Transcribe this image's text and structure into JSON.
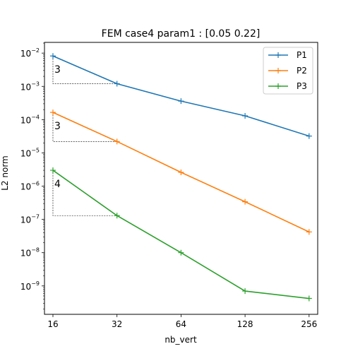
{
  "chart_data": {
    "type": "line",
    "title": "FEM case4 param1 : [0.05 0.22]",
    "xlabel": "nb_vert",
    "ylabel": "L2 norm",
    "xscale": "log2",
    "yscale": "log10",
    "x": [
      16,
      32,
      64,
      128,
      256
    ],
    "xticks": [
      "16",
      "32",
      "64",
      "128",
      "256"
    ],
    "yticks": [
      {
        "mantissa": "10",
        "exp": "−2"
      },
      {
        "mantissa": "10",
        "exp": "−3"
      },
      {
        "mantissa": "10",
        "exp": "−4"
      },
      {
        "mantissa": "10",
        "exp": "−5"
      },
      {
        "mantissa": "10",
        "exp": "−6"
      },
      {
        "mantissa": "10",
        "exp": "−7"
      },
      {
        "mantissa": "10",
        "exp": "−8"
      },
      {
        "mantissa": "10",
        "exp": "−9"
      }
    ],
    "xlim": [
      14.6,
      281
    ],
    "ylim": [
      1.4e-10,
      0.021
    ],
    "grid": false,
    "legend": "top-right",
    "series": [
      {
        "name": "P1",
        "color": "#1f77b4",
        "values": [
          0.0082,
          0.0012,
          0.00036,
          0.00013,
          3.2e-05
        ]
      },
      {
        "name": "P2",
        "color": "#ff7f0e",
        "values": [
          0.000165,
          2.2e-05,
          2.6e-06,
          3.4e-07,
          4.2e-08
        ]
      },
      {
        "name": "P3",
        "color": "#2ca02c",
        "values": [
          3e-06,
          1.3e-07,
          1e-08,
          7e-10,
          4.2e-10
        ]
      }
    ],
    "annotations": [
      {
        "text": "3",
        "series": 0
      },
      {
        "text": "3",
        "series": 1
      },
      {
        "text": "4",
        "series": 2
      }
    ]
  }
}
